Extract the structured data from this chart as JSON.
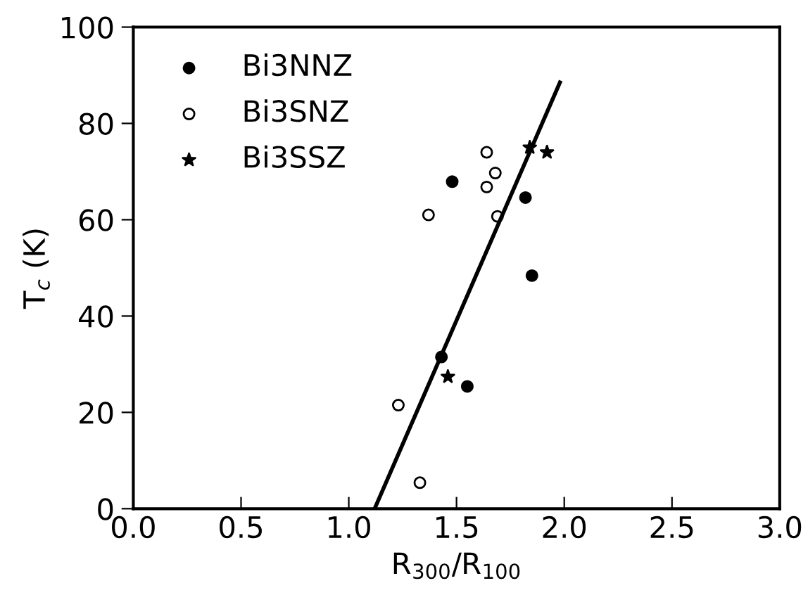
{
  "chart_data": {
    "type": "scatter",
    "xlabel": "R$_{300}$/R$_{100}$",
    "ylabel": "T$_{c}$ (K)",
    "xlim": [
      0,
      3
    ],
    "ylim": [
      0,
      100
    ],
    "xticks": [
      {
        "value": 0,
        "label": "0.0"
      },
      {
        "value": 0.5,
        "label": "0.5"
      },
      {
        "value": 1,
        "label": "1.0"
      },
      {
        "value": 1.5,
        "label": "1.5"
      },
      {
        "value": 2,
        "label": "2.0"
      },
      {
        "value": 2.5,
        "label": "2.5"
      },
      {
        "value": 3,
        "label": "3.0"
      }
    ],
    "yticks": [
      0,
      20,
      40,
      60,
      80,
      100
    ],
    "grid": false,
    "legend": "top left",
    "series": [
      {
        "name": "Bi3NNZ",
        "color": "#000000",
        "marker": "circle",
        "x": [
          1.48,
          1.82,
          1.85,
          1.43,
          1.55
        ],
        "values": [
          67.9,
          64.6,
          48.4,
          31.5,
          25.4
        ]
      },
      {
        "name": "Bi3SNZ",
        "color": "#000000",
        "marker": "circle",
        "x": [
          1.64,
          1.68,
          1.64,
          1.37,
          1.69,
          1.23,
          1.33
        ],
        "values": [
          74.0,
          69.7,
          66.8,
          61.0,
          60.7,
          21.5,
          5.4
        ]
      },
      {
        "name": "Bi3SSZ",
        "color": "#000000",
        "marker": "star",
        "x": [
          1.84,
          1.92,
          1.46
        ],
        "values": [
          75.0,
          74.0,
          27.4
        ]
      },
      {
        "type": "line",
        "color": "#000000",
        "marker": "none",
        "line_style": "solid",
        "x": [
          1.12,
          1.98
        ],
        "values": [
          0,
          88.5
        ]
      }
    ]
  }
}
